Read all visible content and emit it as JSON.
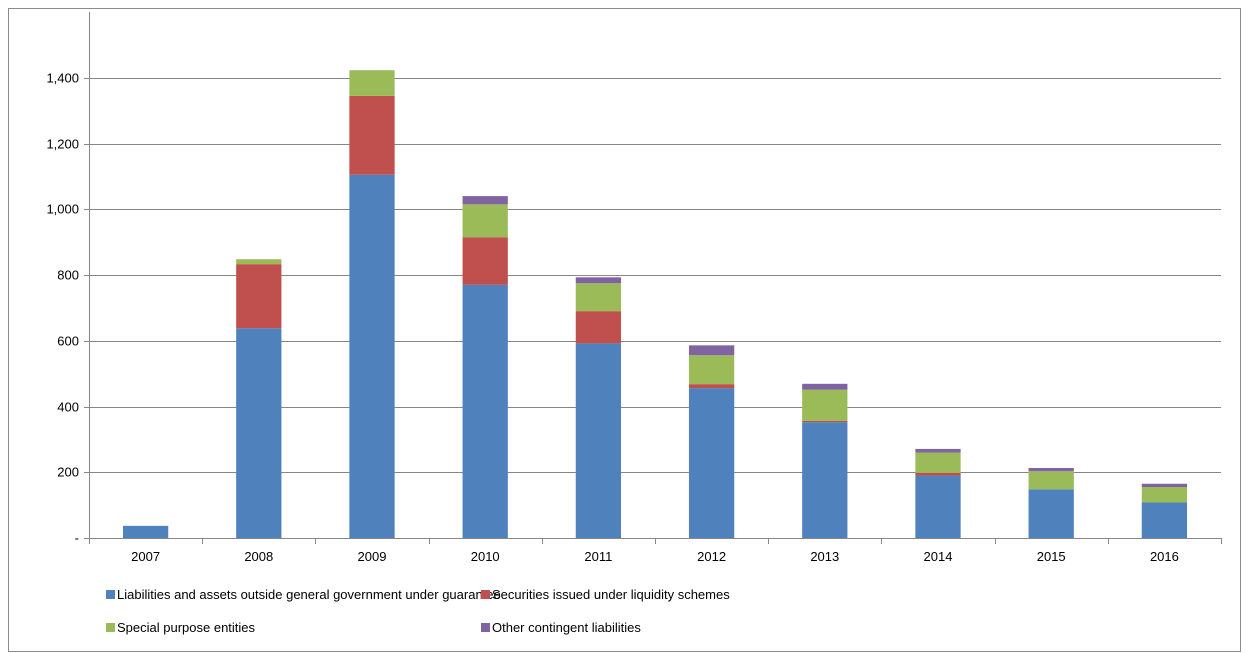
{
  "chart_data": {
    "type": "bar",
    "stacked": true,
    "title": "",
    "xlabel": "",
    "ylabel": "",
    "categories": [
      "2007",
      "2008",
      "2009",
      "2010",
      "2011",
      "2012",
      "2013",
      "2014",
      "2015",
      "2016"
    ],
    "ylim": [
      0,
      1600
    ],
    "yticks": [
      0,
      200,
      400,
      600,
      800,
      1000,
      1200,
      1400
    ],
    "ytick_labels": [
      "-",
      "200",
      "400",
      "600",
      "800",
      "1,000",
      "1,200",
      "1,400"
    ],
    "grid": true,
    "legend_position": "bottom",
    "series": [
      {
        "name": "Liabilities and assets outside general government under guarantee",
        "color": "#4f81bd",
        "values": [
          37,
          638,
          1105,
          770,
          592,
          456,
          352,
          190,
          148,
          108
        ]
      },
      {
        "name": "Securities issued under liquidity schemes",
        "color": "#c0504d",
        "values": [
          0,
          195,
          240,
          145,
          98,
          12,
          4,
          8,
          0,
          0
        ]
      },
      {
        "name": "Special purpose entities",
        "color": "#9bbb59",
        "values": [
          0,
          15,
          78,
          100,
          85,
          88,
          95,
          62,
          55,
          47
        ]
      },
      {
        "name": "Other contingent liabilities",
        "color": "#8064a2",
        "values": [
          0,
          0,
          0,
          25,
          18,
          30,
          18,
          11,
          10,
          10
        ]
      }
    ]
  }
}
